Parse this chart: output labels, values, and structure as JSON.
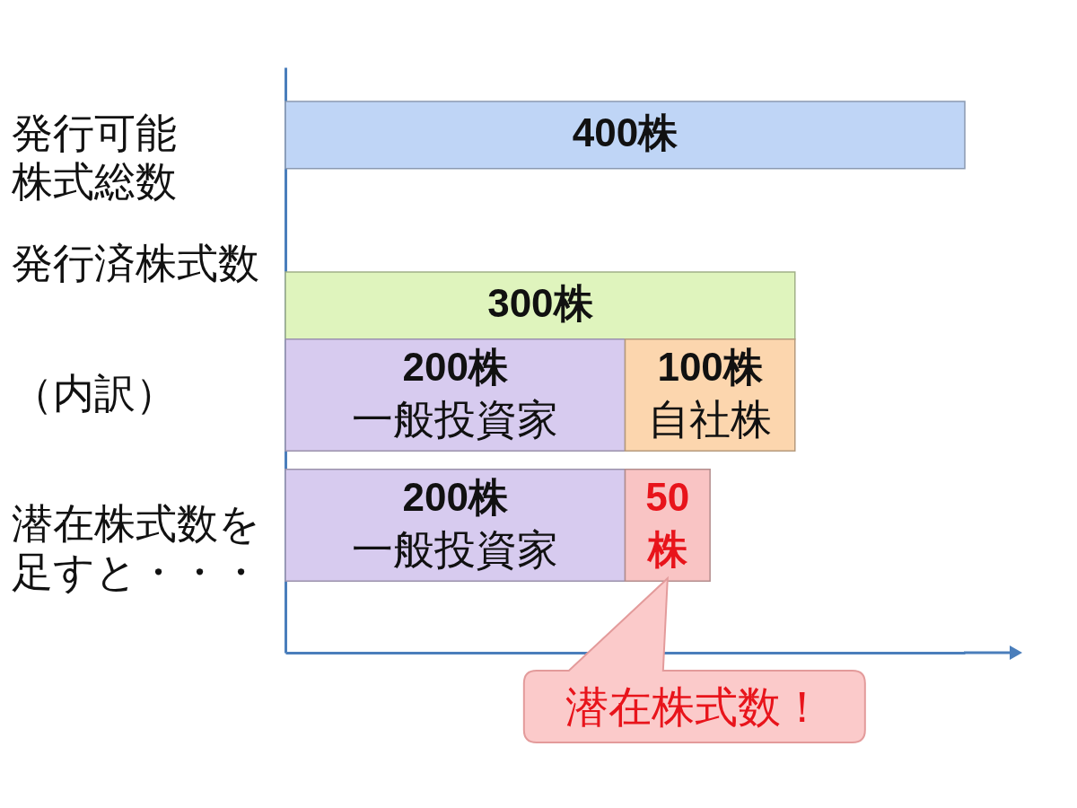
{
  "chart_data": {
    "type": "bar",
    "orientation": "horizontal",
    "stacked": true,
    "tick_labels": "y",
    "categories": [
      "発行可能株式総数",
      "発行済株式数",
      "（内訳）",
      "潜在株式数を足すと・・・"
    ],
    "series": [
      {
        "color": "#bfd5f6",
        "values": [
          400,
          null,
          null,
          null
        ],
        "value_labels": [
          "400株",
          null,
          null,
          null
        ]
      },
      {
        "color": "#dff4bd",
        "values": [
          null,
          300,
          null,
          null
        ],
        "value_labels": [
          null,
          "300株",
          null,
          null
        ]
      },
      {
        "name": "一般投資家",
        "color": "#d7cbef",
        "values": [
          null,
          null,
          200,
          200
        ],
        "value_labels": [
          null,
          null,
          "200株",
          "200株"
        ]
      },
      {
        "name": "自社株",
        "color": "#fcd6ae",
        "values": [
          null,
          null,
          100,
          null
        ],
        "value_labels": [
          null,
          null,
          "100株",
          null
        ]
      },
      {
        "color": "#f9c4c4",
        "values": [
          null,
          null,
          null,
          50
        ],
        "value_labels": [
          null,
          null,
          null,
          "50株"
        ]
      }
    ],
    "annotations": [
      "潜在株式数！"
    ]
  }
}
